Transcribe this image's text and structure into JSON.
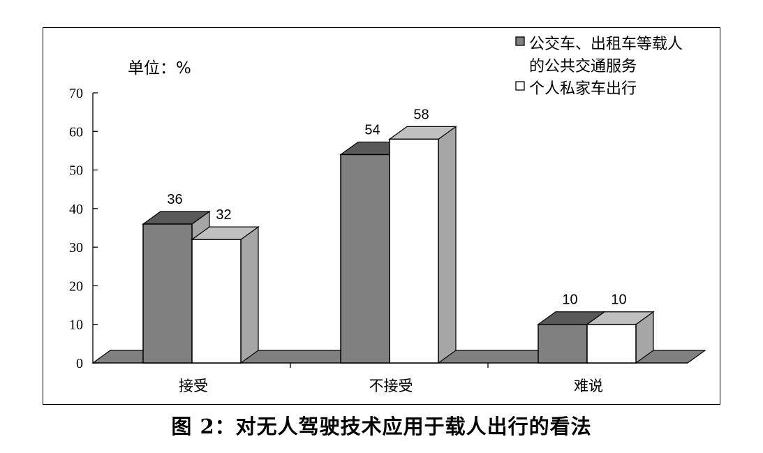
{
  "caption": "图 2：对无人驾驶技术应用于载人出行的看法",
  "unit_label": "单位：%",
  "colors": {
    "series1_front": "#808080",
    "series1_top": "#595959",
    "series2_front": "#ffffff",
    "series2_top": "#c0c0c0",
    "side": "#a6a6a6",
    "floor": "#808080"
  },
  "chart_data": {
    "type": "bar",
    "title": "",
    "categories": [
      "接受",
      "不接受",
      "难说"
    ],
    "series": [
      {
        "name": "公交车、出租车等载人的公共交通服务",
        "legend_lines": [
          "公交车、出租车等载人",
          "的公共交通服务"
        ],
        "values": [
          36,
          54,
          10
        ]
      },
      {
        "name": "个人私家车出行",
        "legend_lines": [
          "个人私家车出行"
        ],
        "values": [
          32,
          58,
          10
        ]
      }
    ],
    "yticks": [
      "0",
      "10",
      "20",
      "30",
      "40",
      "50",
      "60",
      "70"
    ],
    "ylim": [
      0,
      70
    ],
    "xlabel": "",
    "ylabel": "",
    "grid": false,
    "legend": "top-right",
    "three_d": true
  }
}
